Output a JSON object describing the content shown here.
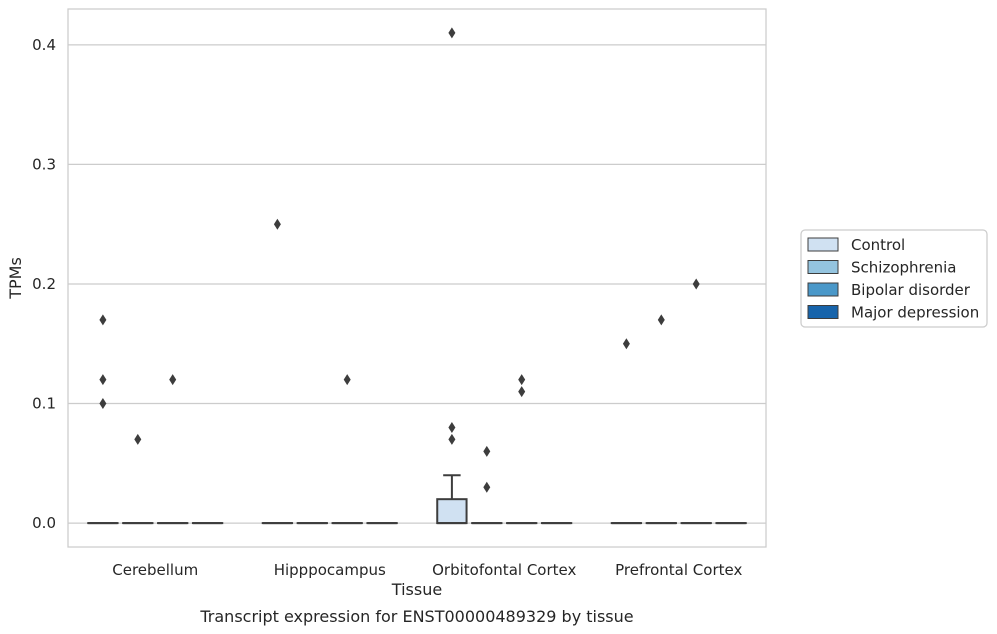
{
  "chart_data": {
    "type": "box",
    "title": "",
    "caption": "Transcript expression for ENST00000489329 by tissue",
    "xlabel": "Tissue",
    "ylabel": "TPMs",
    "ylim": [
      -0.02,
      0.43
    ],
    "yticks": [
      0.0,
      0.1,
      0.2,
      0.3,
      0.4
    ],
    "ytick_labels": [
      "0.0",
      "0.1",
      "0.2",
      "0.3",
      "0.4"
    ],
    "grid": "horizontal",
    "legend_position": "right",
    "categories": [
      "Cerebellum",
      "Hipppocampus",
      "Orbitofontal Cortex",
      "Prefrontal Cortex"
    ],
    "series": [
      {
        "name": "Control",
        "color": "#d0e1f2",
        "boxes": [
          {
            "q1": 0,
            "median": 0,
            "q3": 0,
            "whisker_low": 0,
            "whisker_high": 0,
            "outliers": [
              0.17,
              0.12,
              0.1
            ]
          },
          {
            "q1": 0,
            "median": 0,
            "q3": 0,
            "whisker_low": 0,
            "whisker_high": 0,
            "outliers": [
              0.25
            ]
          },
          {
            "q1": 0,
            "median": 0,
            "q3": 0.02,
            "whisker_low": 0,
            "whisker_high": 0.04,
            "outliers": [
              0.41,
              0.08,
              0.07
            ]
          },
          {
            "q1": 0,
            "median": 0,
            "q3": 0,
            "whisker_low": 0,
            "whisker_high": 0,
            "outliers": [
              0.15
            ]
          }
        ]
      },
      {
        "name": "Schizophrenia",
        "color": "#94c4df",
        "boxes": [
          {
            "q1": 0,
            "median": 0,
            "q3": 0,
            "whisker_low": 0,
            "whisker_high": 0,
            "outliers": [
              0.07
            ]
          },
          {
            "q1": 0,
            "median": 0,
            "q3": 0,
            "whisker_low": 0,
            "whisker_high": 0,
            "outliers": []
          },
          {
            "q1": 0,
            "median": 0,
            "q3": 0,
            "whisker_low": 0,
            "whisker_high": 0,
            "outliers": [
              0.06,
              0.03
            ]
          },
          {
            "q1": 0,
            "median": 0,
            "q3": 0,
            "whisker_low": 0,
            "whisker_high": 0,
            "outliers": [
              0.17
            ]
          }
        ]
      },
      {
        "name": "Bipolar disorder",
        "color": "#4a98c9",
        "boxes": [
          {
            "q1": 0,
            "median": 0,
            "q3": 0,
            "whisker_low": 0,
            "whisker_high": 0,
            "outliers": [
              0.12
            ]
          },
          {
            "q1": 0,
            "median": 0,
            "q3": 0,
            "whisker_low": 0,
            "whisker_high": 0,
            "outliers": [
              0.12
            ]
          },
          {
            "q1": 0,
            "median": 0,
            "q3": 0,
            "whisker_low": 0,
            "whisker_high": 0,
            "outliers": [
              0.12,
              0.11
            ]
          },
          {
            "q1": 0,
            "median": 0,
            "q3": 0,
            "whisker_low": 0,
            "whisker_high": 0,
            "outliers": [
              0.2
            ]
          }
        ]
      },
      {
        "name": "Major depression",
        "color": "#1764ab",
        "boxes": [
          {
            "q1": 0,
            "median": 0,
            "q3": 0,
            "whisker_low": 0,
            "whisker_high": 0,
            "outliers": []
          },
          {
            "q1": 0,
            "median": 0,
            "q3": 0,
            "whisker_low": 0,
            "whisker_high": 0,
            "outliers": []
          },
          {
            "q1": 0,
            "median": 0,
            "q3": 0,
            "whisker_low": 0,
            "whisker_high": 0,
            "outliers": []
          },
          {
            "q1": 0,
            "median": 0,
            "q3": 0,
            "whisker_low": 0,
            "whisker_high": 0,
            "outliers": []
          }
        ]
      }
    ]
  }
}
